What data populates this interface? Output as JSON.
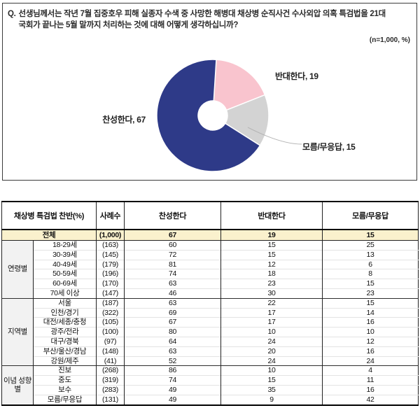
{
  "question": {
    "prefix": "Q.",
    "line1": "선생님께서는 작년 7월 집중호우 피해 실종자 수색 중 사망한 해병대 채상병 순직사건 수사외압 의혹 특검법을 21대",
    "line2": "국회가 끝나는 5월 말까지 처리하는 것에 대해 어떻게 생각하십니까?",
    "note": "(n=1,000, %)"
  },
  "chart_data": {
    "type": "pie",
    "donut": true,
    "start_angle_deg": 0,
    "direction": "clockwise",
    "labels": [
      "반대한다",
      "모름/무응답",
      "찬성한다"
    ],
    "values": [
      19,
      15,
      67
    ],
    "colors": [
      "#F9C4CE",
      "#D3D3D3",
      "#2E3A88"
    ],
    "data_labels": [
      "반대한다, 19",
      "모름/무응답, 15",
      "찬성한다, 67"
    ],
    "legend": "none"
  },
  "table": {
    "headers": [
      "채상병 특검법 찬반(%)",
      "사례수",
      "찬성한다",
      "반대한다",
      "모름/무응답"
    ],
    "total_row": {
      "label": "전체",
      "n": "(1,000)",
      "values": [
        67,
        19,
        15
      ]
    },
    "groups": [
      {
        "label": "연령별",
        "rows": [
          {
            "label": "18-29세",
            "n": "(163)",
            "values": [
              60,
              15,
              25
            ]
          },
          {
            "label": "30-39세",
            "n": "(145)",
            "values": [
              72,
              15,
              13
            ]
          },
          {
            "label": "40-49세",
            "n": "(179)",
            "values": [
              81,
              12,
              6
            ]
          },
          {
            "label": "50-59세",
            "n": "(196)",
            "values": [
              74,
              18,
              8
            ]
          },
          {
            "label": "60-69세",
            "n": "(170)",
            "values": [
              63,
              23,
              15
            ]
          },
          {
            "label": "70세 이상",
            "n": "(147)",
            "values": [
              46,
              30,
              23
            ]
          }
        ]
      },
      {
        "label": "지역별",
        "rows": [
          {
            "label": "서울",
            "n": "(187)",
            "values": [
              63,
              22,
              15
            ]
          },
          {
            "label": "인천/경기",
            "n": "(322)",
            "values": [
              69,
              17,
              14
            ]
          },
          {
            "label": "대전/세종/충청",
            "n": "(105)",
            "values": [
              67,
              17,
              16
            ]
          },
          {
            "label": "광주/전라",
            "n": "(100)",
            "values": [
              80,
              10,
              10
            ]
          },
          {
            "label": "대구/경북",
            "n": "(97)",
            "values": [
              64,
              24,
              12
            ]
          },
          {
            "label": "부산/울산/경남",
            "n": "(148)",
            "values": [
              63,
              20,
              16
            ]
          },
          {
            "label": "강원/제주",
            "n": "(41)",
            "values": [
              52,
              24,
              24
            ]
          }
        ]
      },
      {
        "label": "이념 성향별",
        "rows": [
          {
            "label": "진보",
            "n": "(268)",
            "values": [
              86,
              10,
              4
            ]
          },
          {
            "label": "중도",
            "n": "(319)",
            "values": [
              74,
              15,
              11
            ]
          },
          {
            "label": "보수",
            "n": "(283)",
            "values": [
              49,
              35,
              16
            ]
          },
          {
            "label": "모름/무응답",
            "n": "(131)",
            "values": [
              49,
              9,
              42
            ]
          }
        ]
      }
    ]
  },
  "colors": {
    "pie_pro": "#2E3A88",
    "pie_con": "#F9C4CE",
    "pie_dk": "#D3D3D3",
    "total_row_bg": "#FAF1CD",
    "group_cell_bg": "#F2F2F2"
  }
}
